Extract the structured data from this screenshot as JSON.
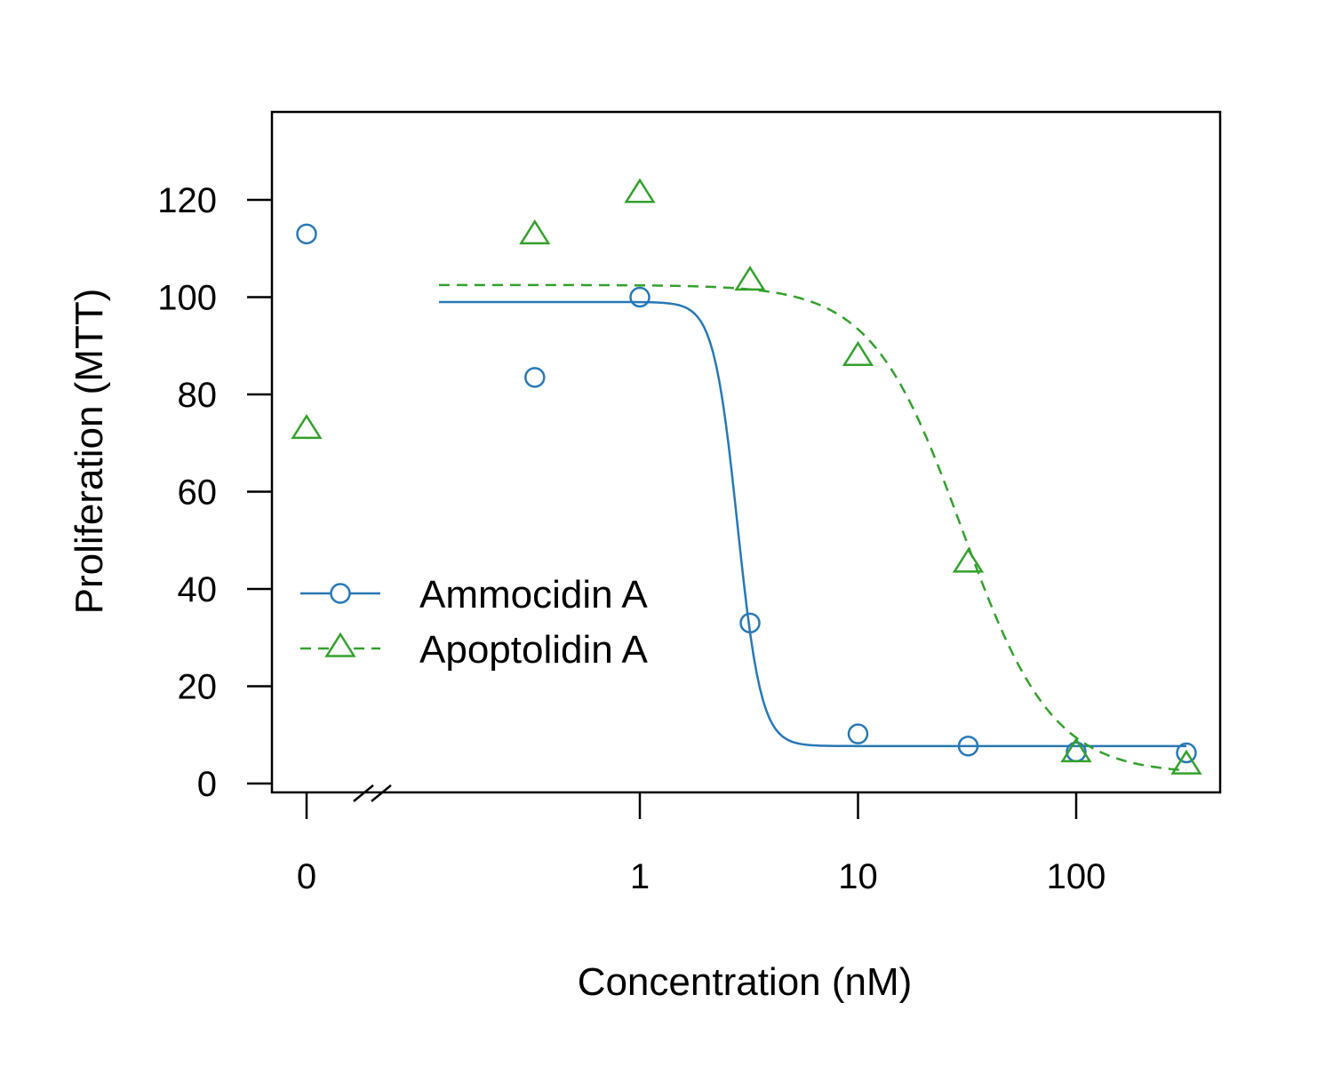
{
  "chart_data": {
    "type": "scatter",
    "title": "",
    "xlabel": "Concentration (nM)",
    "ylabel": "Proliferation (MTT)",
    "x_scale": "log10 with broken axis at 0",
    "ylim": [
      0,
      135
    ],
    "x_ticks": [
      {
        "value": 0,
        "label": "0"
      },
      {
        "value": 1,
        "label": "1"
      },
      {
        "value": 10,
        "label": "10"
      },
      {
        "value": 100,
        "label": "100"
      }
    ],
    "y_ticks": [
      0,
      20,
      40,
      60,
      80,
      100,
      120
    ],
    "grid": false,
    "legend_position": "left-middle",
    "series": [
      {
        "name": "Ammocidin A",
        "color": "#2878b5",
        "marker": "circle",
        "line_style": "solid",
        "points": [
          {
            "x": 0,
            "y": 113
          },
          {
            "x": 0.33,
            "y": 83.5
          },
          {
            "x": 1,
            "y": 100
          },
          {
            "x": 3.2,
            "y": 33
          },
          {
            "x": 10,
            "y": 10.2
          },
          {
            "x": 32,
            "y": 7.7
          },
          {
            "x": 100,
            "y": 6.5
          },
          {
            "x": 320,
            "y": 6.3
          }
        ],
        "fit": {
          "top": 99,
          "bottom": 7.7,
          "ic50": 2.8,
          "hill": 8
        }
      },
      {
        "name": "Apoptolidin A",
        "color": "#33a02c",
        "marker": "triangle",
        "line_style": "dashed",
        "points": [
          {
            "x": 0,
            "y": 73
          },
          {
            "x": 0.33,
            "y": 113
          },
          {
            "x": 1,
            "y": 121.5
          },
          {
            "x": 3.2,
            "y": 103.5
          },
          {
            "x": 10,
            "y": 88
          },
          {
            "x": 32,
            "y": 45.5
          },
          {
            "x": 100,
            "y": 6.5
          },
          {
            "x": 320,
            "y": 4
          }
        ],
        "fit": {
          "top": 102.5,
          "bottom": 2,
          "ic50": 30,
          "hill": 2.1
        }
      }
    ]
  }
}
